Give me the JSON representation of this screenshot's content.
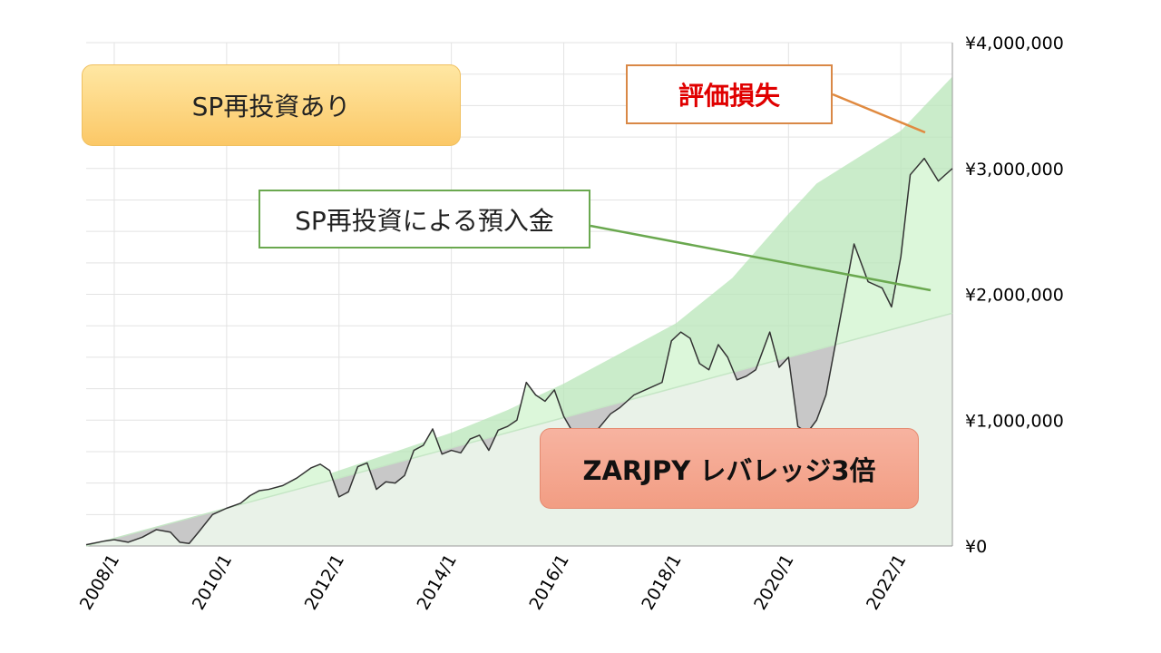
{
  "chart_data": {
    "type": "area",
    "title": "",
    "xlabel": "",
    "ylabel": "",
    "x_ticks": [
      "2008/1",
      "2010/1",
      "2012/1",
      "2014/1",
      "2016/1",
      "2018/1",
      "2020/1",
      "2022/1"
    ],
    "y_ticks": [
      "¥0",
      "¥1,000,000",
      "¥2,000,000",
      "¥3,000,000",
      "¥4,000,000"
    ],
    "ylim": [
      0,
      4000000
    ],
    "xlim": [
      "2007/7",
      "2022/12"
    ],
    "grid": true,
    "y_axis_side": "right",
    "series": [
      {
        "type": "area",
        "color": "#b8e6b8",
        "points": [
          [
            "2007/7",
            0
          ],
          [
            "2008/1",
            60000
          ],
          [
            "2009/1",
            150000
          ],
          [
            "2010/1",
            300000
          ],
          [
            "2011/1",
            450000
          ],
          [
            "2012/1",
            600000
          ],
          [
            "2013/1",
            750000
          ],
          [
            "2014/1",
            900000
          ],
          [
            "2015/1",
            1080000
          ],
          [
            "2016/1",
            1290000
          ],
          [
            "2017/1",
            1530000
          ],
          [
            "2018/1",
            1770000
          ],
          [
            "2019/1",
            2130000
          ],
          [
            "2020/1",
            2640000
          ],
          [
            "2020/7",
            2880000
          ],
          [
            "2021/1",
            3020000
          ],
          [
            "2022/1",
            3300000
          ],
          [
            "2022/12",
            3730000
          ]
        ]
      },
      {
        "type": "line",
        "color": "#c5e6c5",
        "points": [
          [
            "2007/7",
            0
          ],
          [
            "2022/12",
            1850000
          ]
        ]
      },
      {
        "type": "line",
        "color": "#333333",
        "points": [
          [
            "2007/7",
            10000
          ],
          [
            "2007/11",
            40000
          ],
          [
            "2008/1",
            50000
          ],
          [
            "2008/4",
            30000
          ],
          [
            "2008/7",
            70000
          ],
          [
            "2008/10",
            130000
          ],
          [
            "2009/1",
            110000
          ],
          [
            "2009/3",
            30000
          ],
          [
            "2009/5",
            20000
          ],
          [
            "2009/7",
            110000
          ],
          [
            "2009/10",
            250000
          ],
          [
            "2010/1",
            300000
          ],
          [
            "2010/4",
            340000
          ],
          [
            "2010/6",
            400000
          ],
          [
            "2010/8",
            440000
          ],
          [
            "2010/10",
            450000
          ],
          [
            "2011/1",
            480000
          ],
          [
            "2011/4",
            540000
          ],
          [
            "2011/7",
            620000
          ],
          [
            "2011/9",
            650000
          ],
          [
            "2011/11",
            600000
          ],
          [
            "2012/1",
            390000
          ],
          [
            "2012/3",
            430000
          ],
          [
            "2012/5",
            630000
          ],
          [
            "2012/7",
            660000
          ],
          [
            "2012/9",
            450000
          ],
          [
            "2012/11",
            510000
          ],
          [
            "2013/1",
            500000
          ],
          [
            "2013/3",
            560000
          ],
          [
            "2013/5",
            760000
          ],
          [
            "2013/7",
            800000
          ],
          [
            "2013/9",
            930000
          ],
          [
            "2013/11",
            730000
          ],
          [
            "2014/1",
            760000
          ],
          [
            "2014/3",
            740000
          ],
          [
            "2014/5",
            850000
          ],
          [
            "2014/7",
            880000
          ],
          [
            "2014/9",
            760000
          ],
          [
            "2014/11",
            920000
          ],
          [
            "2015/1",
            950000
          ],
          [
            "2015/3",
            1000000
          ],
          [
            "2015/5",
            1300000
          ],
          [
            "2015/7",
            1200000
          ],
          [
            "2015/9",
            1150000
          ],
          [
            "2015/11",
            1240000
          ],
          [
            "2016/1",
            1030000
          ],
          [
            "2016/3",
            900000
          ],
          [
            "2016/7",
            870000
          ],
          [
            "2016/11",
            1050000
          ],
          [
            "2017/1",
            1100000
          ],
          [
            "2017/4",
            1200000
          ],
          [
            "2017/7",
            1250000
          ],
          [
            "2017/10",
            1300000
          ],
          [
            "2017/12",
            1630000
          ],
          [
            "2018/2",
            1700000
          ],
          [
            "2018/4",
            1650000
          ],
          [
            "2018/6",
            1450000
          ],
          [
            "2018/8",
            1400000
          ],
          [
            "2018/10",
            1600000
          ],
          [
            "2018/12",
            1500000
          ],
          [
            "2019/2",
            1320000
          ],
          [
            "2019/4",
            1350000
          ],
          [
            "2019/6",
            1400000
          ],
          [
            "2019/9",
            1700000
          ],
          [
            "2019/11",
            1420000
          ],
          [
            "2020/1",
            1500000
          ],
          [
            "2020/3",
            950000
          ],
          [
            "2020/5",
            900000
          ],
          [
            "2020/7",
            1000000
          ],
          [
            "2020/9",
            1200000
          ],
          [
            "2020/11",
            1600000
          ],
          [
            "2021/1",
            2000000
          ],
          [
            "2021/3",
            2400000
          ],
          [
            "2021/6",
            2100000
          ],
          [
            "2021/9",
            2050000
          ],
          [
            "2021/11",
            1900000
          ],
          [
            "2022/1",
            2300000
          ],
          [
            "2022/3",
            2950000
          ],
          [
            "2022/6",
            3080000
          ],
          [
            "2022/9",
            2900000
          ],
          [
            "2022/12",
            3000000
          ]
        ]
      }
    ],
    "annotations": [
      {
        "id": "sp",
        "text": "SP再投資あり"
      },
      {
        "id": "loss",
        "text": "評価損失"
      },
      {
        "id": "deposit",
        "text": "SP再投資による預入金"
      },
      {
        "id": "zar",
        "text": "ZARJPY レバレッジ3倍"
      }
    ]
  },
  "colors": {
    "deposit_area": "#b8e6b8",
    "principal_area": "#e9f2e8",
    "gain_fill": "#dcf7da",
    "loss_fill": "#c8c8c8",
    "value_line": "#333333",
    "loss_pointer": "#e08a40",
    "deposit_pointer": "#6aa84f"
  }
}
